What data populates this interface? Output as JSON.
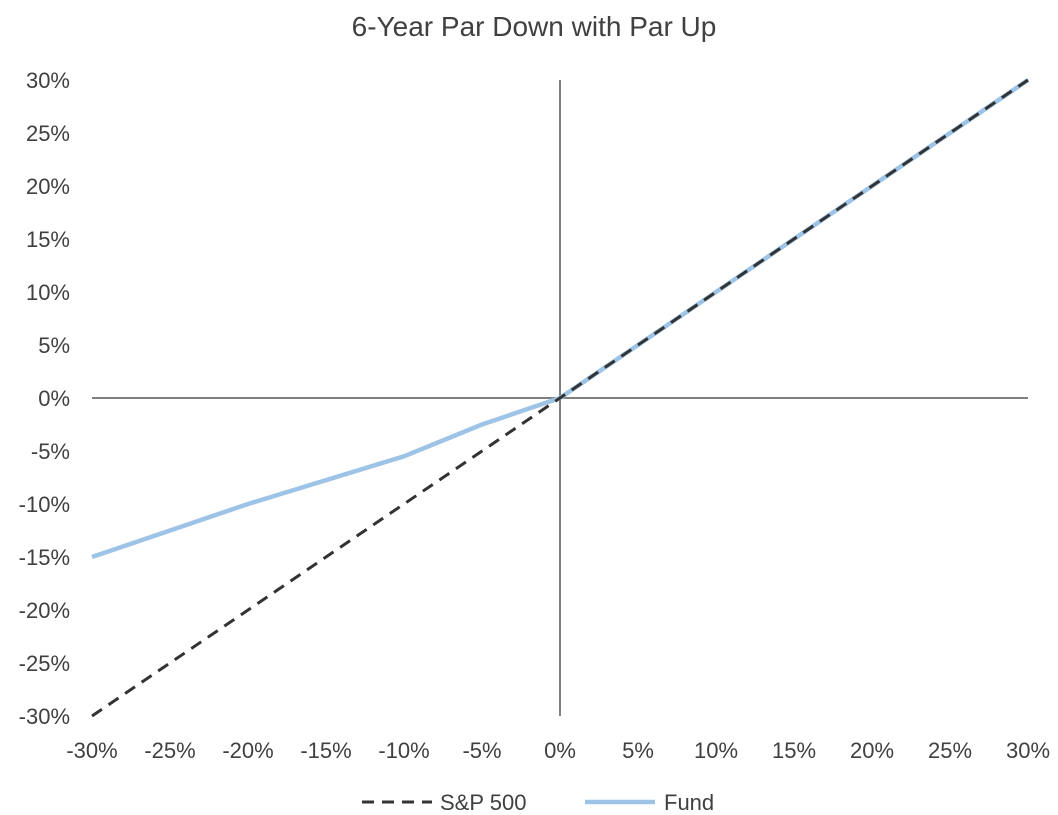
{
  "chart_data": {
    "type": "line",
    "title": "6-Year Par Down with Par Up",
    "xlabel": "",
    "ylabel": "",
    "xlim": [
      -30,
      30
    ],
    "ylim": [
      -30,
      30
    ],
    "x_ticks": [
      "-30%",
      "-25%",
      "-20%",
      "-15%",
      "-10%",
      "-5%",
      "0%",
      "5%",
      "10%",
      "15%",
      "20%",
      "25%",
      "30%"
    ],
    "y_ticks": [
      "30%",
      "25%",
      "20%",
      "15%",
      "10%",
      "5%",
      "0%",
      "-5%",
      "-10%",
      "-15%",
      "-20%",
      "-25%",
      "-30%"
    ],
    "grid": false,
    "legend_position": "bottom",
    "series": [
      {
        "name": "S&P 500",
        "color": "#333333",
        "style": "dashed",
        "x": [
          -30,
          0,
          30
        ],
        "y": [
          -30,
          0,
          30
        ]
      },
      {
        "name": "Fund",
        "color": "#9dc3e6",
        "style": "solid",
        "x": [
          -30,
          -20,
          -10,
          -5,
          0,
          30
        ],
        "y": [
          -15,
          -10,
          -5.5,
          -2.5,
          0,
          30
        ]
      }
    ]
  }
}
